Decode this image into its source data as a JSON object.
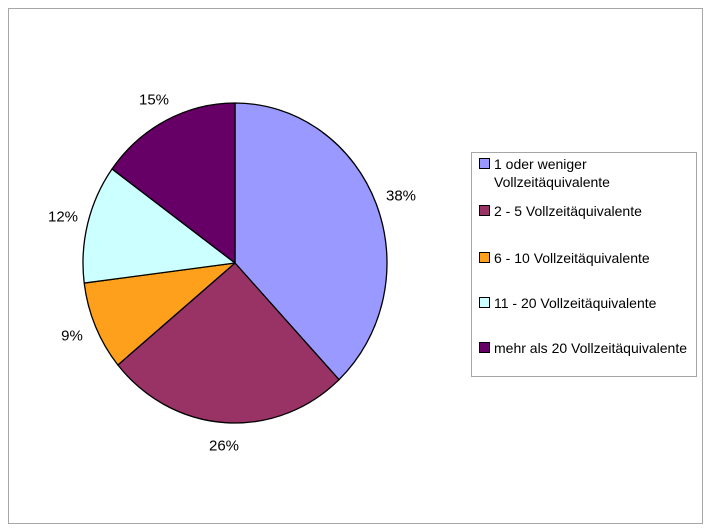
{
  "chart_data": {
    "type": "pie",
    "title": "",
    "units": "percent",
    "direction": "clockwise",
    "start_angle_deg": 0,
    "legend_position": "right",
    "slices": [
      {
        "label": "1 oder weniger Vollzeitäquivalente",
        "value": 38,
        "data_label": "38%",
        "color": "#9999FF"
      },
      {
        "label": "2 - 5 Vollzeitäquivalente",
        "value": 26,
        "data_label": "26%",
        "color": "#993366"
      },
      {
        "label": "6 - 10 Vollzeitäquivalente",
        "value": 9,
        "data_label": "9%",
        "color": "#FFA01C"
      },
      {
        "label": "11 - 20 Vollzeitäquivalente",
        "value": 12,
        "data_label": "12%",
        "color": "#CCFFFF"
      },
      {
        "label": "mehr als 20 Vollzeitäquivalente",
        "value": 15,
        "data_label": "15%",
        "color": "#660066"
      }
    ],
    "slice_border_color": "#000000",
    "frame_border_color": "#A6A6A6"
  }
}
